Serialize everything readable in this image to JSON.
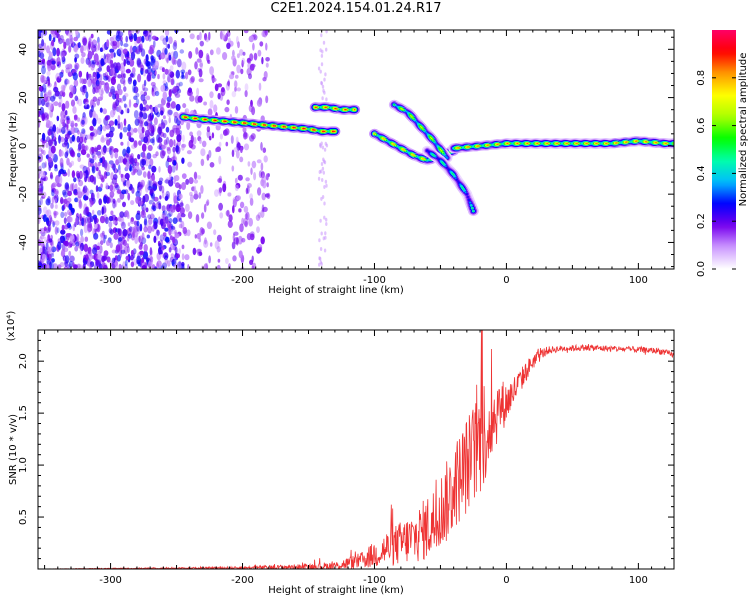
{
  "title": "C2E1.2024.154.01.24.R17",
  "chart_data": [
    {
      "type": "heatmap",
      "title": "C2E1.2024.154.01.24.R17",
      "xlabel": "Height of straight line (km)",
      "ylabel": "Frequency (Hz)",
      "xlim": [
        -355,
        127
      ],
      "ylim": [
        -51,
        48
      ],
      "x_ticks": [
        -300,
        -200,
        -100,
        0,
        100
      ],
      "y_ticks": [
        -40,
        -20,
        0,
        20,
        40
      ],
      "colorbar": {
        "label": "Normalized spectral amplitude",
        "range": [
          0,
          1
        ],
        "ticks": [
          0.0,
          0.2,
          0.4,
          0.6,
          0.8
        ],
        "colors": [
          "#ffffff",
          "#cc99ff",
          "#7700ee",
          "#0000ff",
          "#00bbff",
          "#00ffaa",
          "#00ff00",
          "#aaff00",
          "#ffff00",
          "#ff9900",
          "#ff0000",
          "#ff0066"
        ]
      },
      "noise_region": {
        "x_range": [
          -355,
          -180
        ],
        "freq_range": [
          -51,
          48
        ],
        "amplitude": 0.15
      },
      "ridges": [
        {
          "x": [
            -245,
            -230,
            -210,
            -190,
            -170,
            -150,
            -140,
            -130
          ],
          "freq": [
            12,
            11,
            10,
            9,
            8,
            7,
            6,
            6
          ],
          "amplitude": 0.95
        },
        {
          "x": [
            -145,
            -135,
            -125,
            -115
          ],
          "freq": [
            16,
            16,
            15,
            15
          ],
          "amplitude": 0.9
        },
        {
          "x": [
            -100,
            -90,
            -80,
            -70,
            -60,
            -50,
            -40
          ],
          "freq": [
            5,
            2,
            -1,
            -4,
            -6,
            -4,
            -2
          ],
          "amplitude": 0.8
        },
        {
          "x": [
            -85,
            -75,
            -65,
            -55,
            -45
          ],
          "freq": [
            17,
            14,
            8,
            2,
            -5
          ],
          "amplitude": 0.7
        },
        {
          "x": [
            -60,
            -50,
            -40,
            -30,
            -25
          ],
          "freq": [
            -2,
            -6,
            -12,
            -20,
            -27
          ],
          "amplitude": 0.5
        },
        {
          "x": [
            -40,
            -20,
            0,
            20,
            40,
            60,
            80,
            100,
            120,
            127
          ],
          "freq": [
            -1,
            0,
            1,
            1,
            1,
            1,
            1,
            2,
            1,
            1
          ],
          "amplitude": 0.85
        }
      ]
    },
    {
      "type": "line",
      "xlabel": "Height of straight line (km)",
      "ylabel": "SNR (10 * v/v)",
      "y_multiplier": "(x10⁴)",
      "xlim": [
        -355,
        127
      ],
      "ylim": [
        0,
        23000
      ],
      "x_ticks": [
        -300,
        -200,
        -100,
        0,
        100
      ],
      "y_ticks": [
        5000,
        10000,
        15000,
        20000
      ],
      "y_tick_labels": [
        "0.5",
        "1.0",
        "1.5",
        "2.0"
      ],
      "series": [
        {
          "color": "#ee3333",
          "x": [
            -355,
            -300,
            -250,
            -200,
            -160,
            -130,
            -110,
            -90,
            -70,
            -55,
            -45,
            -35,
            -25,
            -18,
            -12,
            -6,
            0,
            10,
            20,
            30,
            40,
            60,
            80,
            100,
            115,
            127
          ],
          "y": [
            0,
            50,
            80,
            120,
            200,
            300,
            800,
            2000,
            3000,
            4500,
            6500,
            9000,
            11000,
            13000,
            14000,
            15500,
            16000,
            18000,
            20000,
            21000,
            21200,
            21300,
            21200,
            21100,
            21000,
            20600
          ],
          "noise_envelope": [
            0,
            40,
            60,
            120,
            250,
            400,
            800,
            1800,
            2500,
            3500,
            4000,
            4500,
            5000,
            5500,
            4000,
            3000,
            2000,
            1200,
            800,
            400,
            300,
            300,
            300,
            300,
            300,
            300
          ]
        }
      ]
    }
  ]
}
